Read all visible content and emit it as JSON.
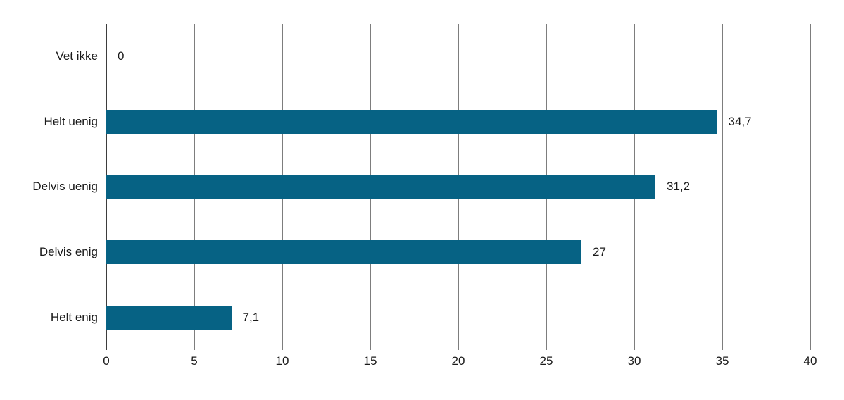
{
  "chart_data": {
    "type": "bar",
    "orientation": "horizontal",
    "categories": [
      "Vet ikke",
      "Helt uenig",
      "Delvis uenig",
      "Delvis enig",
      "Helt enig"
    ],
    "values": [
      0,
      34.7,
      31.2,
      27,
      7.1
    ],
    "value_labels": [
      "0",
      "34,7",
      "31,2",
      "27",
      "7,1"
    ],
    "x_ticks": [
      0,
      5,
      10,
      15,
      20,
      25,
      30,
      35,
      40
    ],
    "x_tick_labels": [
      "0",
      "5",
      "10",
      "15",
      "20",
      "25",
      "30",
      "35",
      "40"
    ],
    "xlim": [
      0,
      40
    ],
    "grid": "vertical",
    "legend": "none",
    "colors": {
      "bar": "#066284",
      "gridline": "#7d7d7d",
      "zero_line": "#3d3d3d",
      "text": "#1a1a1a",
      "background": "#ffffff"
    }
  }
}
